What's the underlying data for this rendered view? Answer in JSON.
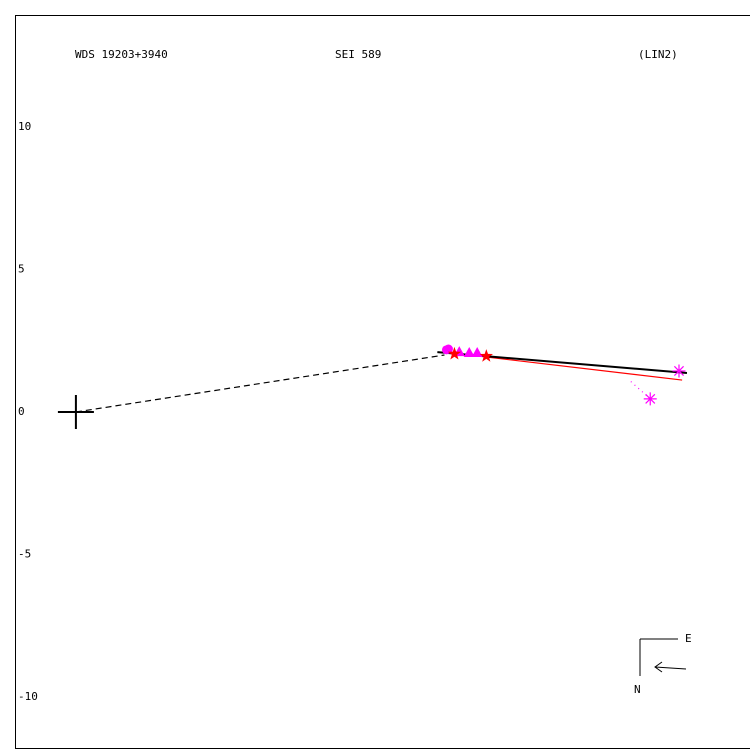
{
  "chart_data": {
    "type": "scatter",
    "title": "WDS 19203+3940",
    "subtitle": "SEI 589",
    "annotation": "(LIN2)",
    "compass": {
      "east": "E",
      "north": "N"
    },
    "xlim": [
      -2.14,
      23.65
    ],
    "ylim": [
      -11.79,
      13.93
    ],
    "yticks": [
      10,
      5,
      0,
      -5,
      -10
    ],
    "series": [
      {
        "kind": "line",
        "style": "dashed",
        "color": "#000000",
        "x": [
          0,
          12.95
        ],
        "values": [
          0,
          2.0
        ]
      },
      {
        "kind": "line",
        "style": "solid",
        "color": "#ff0000",
        "x": [
          13.82,
          21.3
        ],
        "values": [
          2.0,
          1.12
        ]
      },
      {
        "kind": "line",
        "style": "solid",
        "color": "#000000",
        "x": [
          12.7,
          21.47
        ],
        "values": [
          2.1,
          1.37
        ]
      },
      {
        "kind": "line",
        "style": "dotted",
        "color": "#ff00ff",
        "x": [
          20.18,
          19.44
        ],
        "values": [
          0.46,
          1.12
        ]
      },
      {
        "kind": "points",
        "marker": "plus",
        "color": "#000000",
        "x": [
          0
        ],
        "values": [
          0
        ]
      },
      {
        "kind": "points",
        "marker": "circle",
        "color": "#ff00ff",
        "x": [
          13.02,
          13.09
        ],
        "values": [
          2.18,
          2.21
        ]
      },
      {
        "kind": "points",
        "marker": "triangle",
        "color": "#ff00ff",
        "x": [
          13.47,
          13.82,
          14.1
        ],
        "values": [
          2.1,
          2.07,
          2.07
        ]
      },
      {
        "kind": "points",
        "marker": "star",
        "color": "#ff0000",
        "x": [
          13.3,
          14.42
        ],
        "values": [
          2.04,
          1.96
        ]
      },
      {
        "kind": "points",
        "marker": "asterisk",
        "color": "#ff00ff",
        "x": [
          21.19,
          20.18
        ],
        "values": [
          1.44,
          0.46
        ]
      }
    ]
  }
}
